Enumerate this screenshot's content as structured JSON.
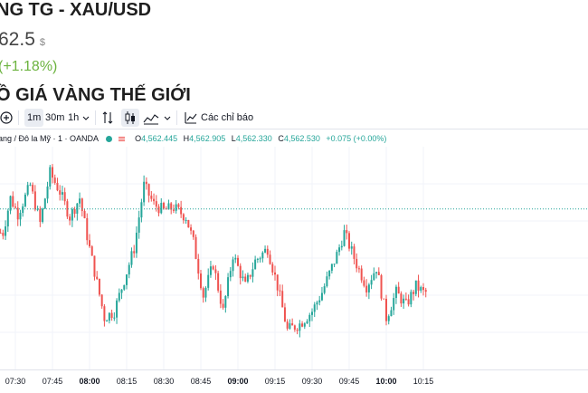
{
  "header": {
    "title": "NG TG - XAU/USD",
    "price": "62.5",
    "currency": "$",
    "change": "(+1.18%)",
    "section_title": "Ồ GIÁ VÀNG THẾ GIỚI"
  },
  "toolbar": {
    "intervals": [
      "1m",
      "30m",
      "1h"
    ],
    "active_interval": "1m",
    "indicators_label": "Các chỉ báo",
    "icons": [
      "add-symbol-icon",
      "compare-icon",
      "candles-icon",
      "area-chart-icon",
      "indicators-icon"
    ]
  },
  "legend": {
    "symbol": "ang / Đô la Mỹ · 1 · OANDA",
    "open_label": "O",
    "open": "4,562.445",
    "high_label": "H",
    "high": "4,562.905",
    "low_label": "L",
    "low": "4,562.330",
    "close_label": "C",
    "close": "4,562.530",
    "change": "+0.075 (+0.00%)"
  },
  "colors": {
    "up": "#26a69a",
    "down": "#ef5350",
    "change": "#6cb33f"
  },
  "chart_data": {
    "type": "candlestick",
    "x_ticks": [
      "07:30",
      "07:45",
      "08:00",
      "08:15",
      "08:30",
      "08:45",
      "09:00",
      "09:15",
      "09:30",
      "09:45",
      "10:00",
      "10:15"
    ],
    "bold_ticks": [
      "08:00",
      "09:00",
      "10:00"
    ],
    "grid": true,
    "last_close": 4562.53,
    "path": [
      [
        "07:25",
        4555
      ],
      [
        "07:28",
        4566
      ],
      [
        "07:31",
        4561
      ],
      [
        "07:36",
        4570
      ],
      [
        "07:40",
        4558
      ],
      [
        "07:44",
        4574
      ],
      [
        "07:48",
        4568
      ],
      [
        "07:52",
        4560
      ],
      [
        "07:56",
        4566
      ],
      [
        "08:00",
        4550
      ],
      [
        "08:06",
        4528
      ],
      [
        "08:10",
        4530
      ],
      [
        "08:14",
        4540
      ],
      [
        "08:18",
        4550
      ],
      [
        "08:22",
        4570
      ],
      [
        "08:26",
        4564
      ],
      [
        "08:30",
        4562
      ],
      [
        "08:34",
        4563
      ],
      [
        "08:39",
        4560
      ],
      [
        "08:42",
        4552
      ],
      [
        "08:46",
        4535
      ],
      [
        "08:50",
        4545
      ],
      [
        "08:54",
        4530
      ],
      [
        "08:58",
        4548
      ],
      [
        "09:03",
        4538
      ],
      [
        "09:07",
        4546
      ],
      [
        "09:12",
        4550
      ],
      [
        "09:16",
        4538
      ],
      [
        "09:20",
        4524
      ],
      [
        "09:25",
        4526
      ],
      [
        "09:30",
        4530
      ],
      [
        "09:34",
        4536
      ],
      [
        "09:40",
        4548
      ],
      [
        "09:43",
        4555
      ],
      [
        "09:48",
        4545
      ],
      [
        "09:52",
        4538
      ],
      [
        "09:56",
        4544
      ],
      [
        "10:00",
        4528
      ],
      [
        "10:04",
        4536
      ],
      [
        "10:08",
        4532
      ],
      [
        "10:12",
        4538
      ],
      [
        "10:15",
        4536
      ]
    ]
  }
}
